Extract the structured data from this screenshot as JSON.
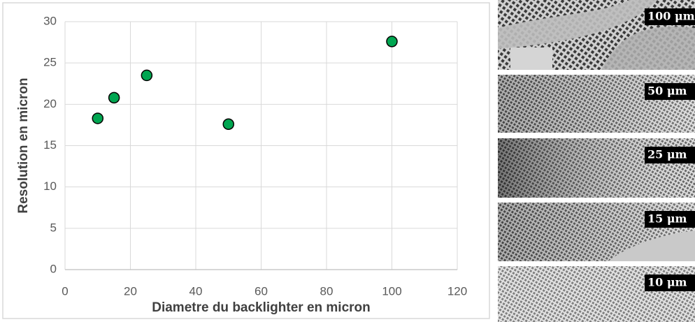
{
  "chart_data": {
    "type": "scatter",
    "x_label": "Diametre du backlighter en micron",
    "y_label": "Resolution en micron",
    "x": [
      10,
      15,
      25,
      50,
      100
    ],
    "values": [
      18.3,
      20.8,
      23.5,
      17.6,
      27.6
    ],
    "color": "#00a651",
    "xlim": [
      0,
      120
    ],
    "xticks": [
      0,
      20,
      40,
      60,
      80,
      100,
      120
    ],
    "ylim": [
      0,
      30
    ],
    "yticks": [
      0,
      5,
      10,
      15,
      20,
      25,
      30
    ],
    "grid": true
  },
  "images": [
    {
      "label": "100 μm"
    },
    {
      "label": "50 μm"
    },
    {
      "label": "25 μm"
    },
    {
      "label": "15 μm"
    },
    {
      "label": "10 μm"
    }
  ]
}
